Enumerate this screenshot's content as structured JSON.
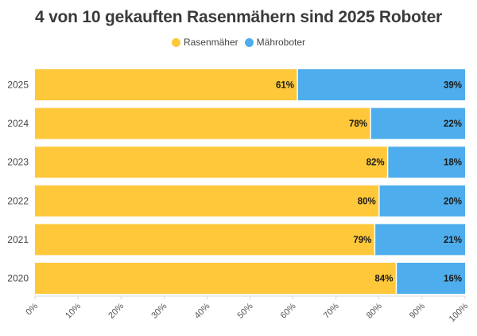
{
  "chart_data": {
    "type": "bar",
    "orientation": "horizontal",
    "stacked": true,
    "title": "4 von 10 gekauften Rasenmähern sind 2025 Roboter",
    "categories": [
      "2025",
      "2024",
      "2023",
      "2022",
      "2021",
      "2020"
    ],
    "series": [
      {
        "name": "Rasenmäher",
        "color": "#FFC83A",
        "values": [
          61,
          78,
          82,
          80,
          79,
          84
        ]
      },
      {
        "name": "Mähroboter",
        "color": "#4EADEC",
        "values": [
          39,
          22,
          18,
          20,
          21,
          16
        ]
      }
    ],
    "xlim": [
      0,
      100
    ],
    "xticks": [
      "0%",
      "10%",
      "20%",
      "30%",
      "40%",
      "50%",
      "60%",
      "70%",
      "80%",
      "90%",
      "100%"
    ],
    "value_suffix": "%",
    "legend_position": "top-center",
    "grid": false
  }
}
